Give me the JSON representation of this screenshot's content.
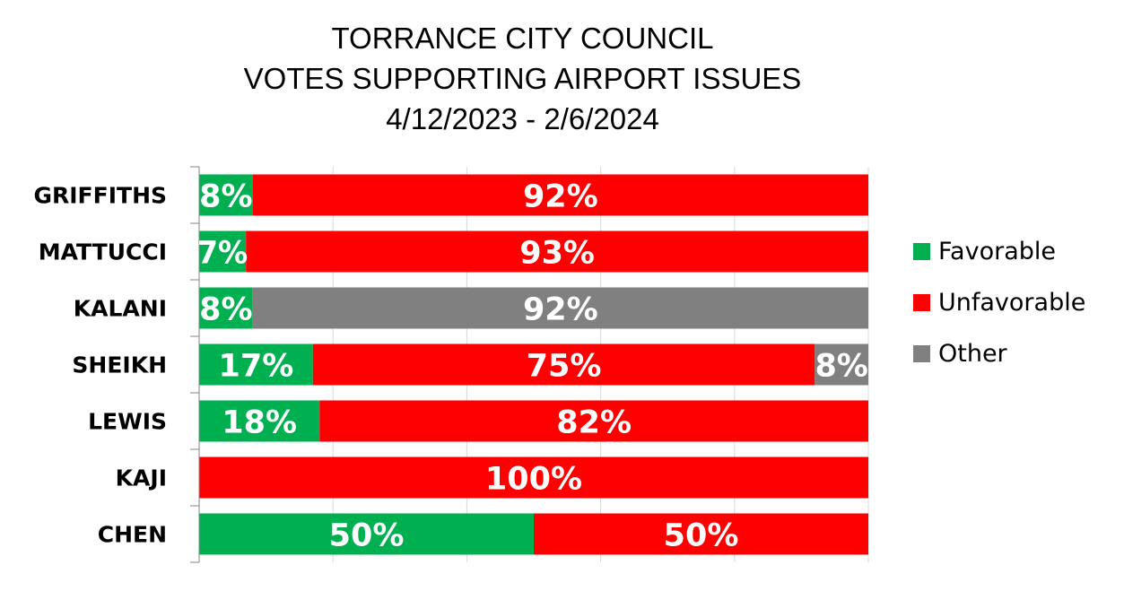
{
  "chart_data": {
    "type": "bar",
    "orientation": "horizontal",
    "stacked": true,
    "title": [
      "TORRANCE CITY COUNCIL",
      "VOTES SUPPORTING AIRPORT ISSUES",
      "4/12/2023 - 2/6/2024"
    ],
    "categories": [
      "GRIFFITHS",
      "MATTUCCI",
      "KALANI",
      "SHEIKH",
      "LEWIS",
      "KAJI",
      "CHEN"
    ],
    "series": [
      {
        "name": "Favorable",
        "color": "#00b050",
        "values": [
          8,
          7,
          8,
          17,
          18,
          0,
          50
        ],
        "labels": [
          "8%",
          "7%",
          "8%",
          "17%",
          "18%",
          "",
          "50%"
        ]
      },
      {
        "name": "Unfavorable",
        "color": "#ff0000",
        "values": [
          92,
          93,
          0,
          75,
          82,
          100,
          50
        ],
        "labels": [
          "92%",
          "93%",
          "",
          "75%",
          "82%",
          "100%",
          "50%"
        ]
      },
      {
        "name": "Other",
        "color": "#808080",
        "values": [
          0,
          0,
          92,
          8,
          0,
          0,
          0
        ],
        "labels": [
          "",
          "",
          "92%",
          "8%",
          "",
          "",
          ""
        ]
      }
    ],
    "xlim": [
      0,
      100
    ],
    "grid": true,
    "legend_position": "right"
  }
}
